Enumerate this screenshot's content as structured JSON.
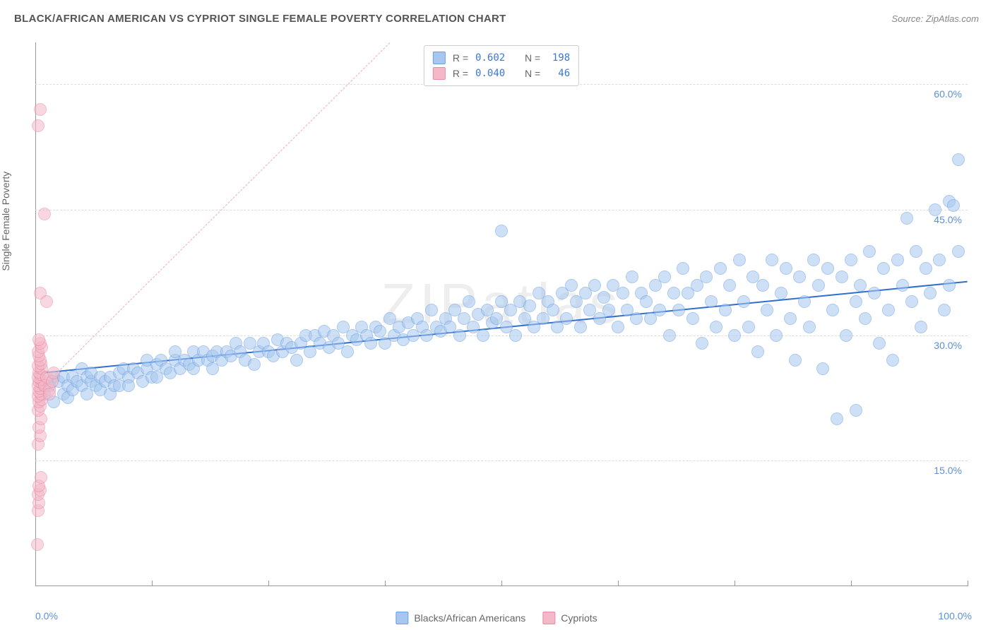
{
  "header": {
    "title": "BLACK/AFRICAN AMERICAN VS CYPRIOT SINGLE FEMALE POVERTY CORRELATION CHART",
    "source_prefix": "Source: ",
    "source": "ZipAtlas.com"
  },
  "chart": {
    "type": "scatter",
    "watermark": "ZIPatlas",
    "ylabel": "Single Female Poverty",
    "xlim": [
      0,
      100
    ],
    "ylim": [
      0,
      65
    ],
    "yticks": [
      {
        "v": 15,
        "label": "15.0%"
      },
      {
        "v": 30,
        "label": "30.0%"
      },
      {
        "v": 45,
        "label": "45.0%"
      },
      {
        "v": 60,
        "label": "60.0%"
      }
    ],
    "xtick_positions": [
      0,
      12.5,
      25,
      37.5,
      50,
      62.5,
      75,
      87.5,
      100
    ],
    "xlabel_min": "0.0%",
    "xlabel_max": "100.0%",
    "background_color": "#ffffff",
    "grid_color": "#dddddd",
    "marker_radius": 9,
    "marker_stroke_width": 1.2,
    "series": [
      {
        "name": "Blacks/African Americans",
        "fill": "#a7c7f0",
        "stroke": "#6b9fe0",
        "fill_opacity": 0.55,
        "R": "0.602",
        "N": "198",
        "trend": {
          "x1": 0,
          "y1": 25.5,
          "x2": 100,
          "y2": 36.5,
          "color": "#2f6fd0",
          "width": 2.5,
          "dash": "solid"
        },
        "points": [
          [
            1,
            23
          ],
          [
            1.5,
            24
          ],
          [
            2,
            22
          ],
          [
            2,
            25
          ],
          [
            2.5,
            24.5
          ],
          [
            3,
            23
          ],
          [
            3,
            25
          ],
          [
            3.5,
            24
          ],
          [
            3.5,
            22.5
          ],
          [
            4,
            25
          ],
          [
            4,
            23.5
          ],
          [
            4.5,
            24.5
          ],
          [
            5,
            24
          ],
          [
            5,
            26
          ],
          [
            5.5,
            25
          ],
          [
            5.5,
            23
          ],
          [
            6,
            24.5
          ],
          [
            6,
            25.5
          ],
          [
            6.5,
            24
          ],
          [
            7,
            25
          ],
          [
            7,
            23.5
          ],
          [
            7.5,
            24.5
          ],
          [
            8,
            25
          ],
          [
            8,
            23
          ],
          [
            8.5,
            24
          ],
          [
            9,
            25.5
          ],
          [
            9,
            24
          ],
          [
            9.5,
            26
          ],
          [
            10,
            25
          ],
          [
            10,
            24
          ],
          [
            10.5,
            26
          ],
          [
            11,
            25.5
          ],
          [
            11.5,
            24.5
          ],
          [
            12,
            26
          ],
          [
            12,
            27
          ],
          [
            12.5,
            25
          ],
          [
            13,
            26.5
          ],
          [
            13,
            25
          ],
          [
            13.5,
            27
          ],
          [
            14,
            26
          ],
          [
            14.5,
            25.5
          ],
          [
            15,
            27
          ],
          [
            15,
            28
          ],
          [
            15.5,
            26
          ],
          [
            16,
            27
          ],
          [
            16.5,
            26.5
          ],
          [
            17,
            28
          ],
          [
            17,
            26
          ],
          [
            17.5,
            27
          ],
          [
            18,
            28
          ],
          [
            18.5,
            27
          ],
          [
            19,
            27.5
          ],
          [
            19,
            26
          ],
          [
            19.5,
            28
          ],
          [
            20,
            27
          ],
          [
            20.5,
            28
          ],
          [
            21,
            27.5
          ],
          [
            21.5,
            29
          ],
          [
            22,
            28
          ],
          [
            22.5,
            27
          ],
          [
            23,
            29
          ],
          [
            23.5,
            26.5
          ],
          [
            24,
            28
          ],
          [
            24.5,
            29
          ],
          [
            25,
            28
          ],
          [
            25.5,
            27.5
          ],
          [
            26,
            29.5
          ],
          [
            26.5,
            28
          ],
          [
            27,
            29
          ],
          [
            27.5,
            28.5
          ],
          [
            28,
            27
          ],
          [
            28.5,
            29
          ],
          [
            29,
            30
          ],
          [
            29.5,
            28
          ],
          [
            30,
            30
          ],
          [
            30.5,
            29
          ],
          [
            31,
            30.5
          ],
          [
            31.5,
            28.5
          ],
          [
            32,
            30
          ],
          [
            32.5,
            29
          ],
          [
            33,
            31
          ],
          [
            33.5,
            28
          ],
          [
            34,
            30
          ],
          [
            34.5,
            29.5
          ],
          [
            35,
            31
          ],
          [
            35.5,
            30
          ],
          [
            36,
            29
          ],
          [
            36.5,
            31
          ],
          [
            37,
            30.5
          ],
          [
            37.5,
            29
          ],
          [
            38,
            32
          ],
          [
            38.5,
            30
          ],
          [
            39,
            31
          ],
          [
            39.5,
            29.5
          ],
          [
            40,
            31.5
          ],
          [
            40.5,
            30
          ],
          [
            41,
            32
          ],
          [
            41.5,
            31
          ],
          [
            42,
            30
          ],
          [
            42.5,
            33
          ],
          [
            43,
            31
          ],
          [
            43.5,
            30.5
          ],
          [
            44,
            32
          ],
          [
            44.5,
            31
          ],
          [
            45,
            33
          ],
          [
            45.5,
            30
          ],
          [
            46,
            32
          ],
          [
            46.5,
            34
          ],
          [
            47,
            31
          ],
          [
            47.5,
            32.5
          ],
          [
            48,
            30
          ],
          [
            48.5,
            33
          ],
          [
            49,
            31.5
          ],
          [
            49.5,
            32
          ],
          [
            50,
            34
          ],
          [
            50.5,
            31
          ],
          [
            50,
            42.5
          ],
          [
            51,
            33
          ],
          [
            51.5,
            30
          ],
          [
            52,
            34
          ],
          [
            52.5,
            32
          ],
          [
            53,
            33.5
          ],
          [
            53.5,
            31
          ],
          [
            54,
            35
          ],
          [
            54.5,
            32
          ],
          [
            55,
            34
          ],
          [
            55.5,
            33
          ],
          [
            56,
            31
          ],
          [
            56.5,
            35
          ],
          [
            57,
            32
          ],
          [
            57.5,
            36
          ],
          [
            58,
            34
          ],
          [
            58.5,
            31
          ],
          [
            59,
            35
          ],
          [
            59.5,
            33
          ],
          [
            60,
            36
          ],
          [
            60.5,
            32
          ],
          [
            61,
            34.5
          ],
          [
            61.5,
            33
          ],
          [
            62,
            36
          ],
          [
            62.5,
            31
          ],
          [
            63,
            35
          ],
          [
            63.5,
            33
          ],
          [
            64,
            37
          ],
          [
            64.5,
            32
          ],
          [
            65,
            35
          ],
          [
            65.5,
            34
          ],
          [
            66,
            32
          ],
          [
            66.5,
            36
          ],
          [
            67,
            33
          ],
          [
            67.5,
            37
          ],
          [
            68,
            30
          ],
          [
            68.5,
            35
          ],
          [
            69,
            33
          ],
          [
            69.5,
            38
          ],
          [
            70,
            35
          ],
          [
            70.5,
            32
          ],
          [
            71,
            36
          ],
          [
            71.5,
            29
          ],
          [
            72,
            37
          ],
          [
            72.5,
            34
          ],
          [
            73,
            31
          ],
          [
            73.5,
            38
          ],
          [
            74,
            33
          ],
          [
            74.5,
            36
          ],
          [
            75,
            30
          ],
          [
            75.5,
            39
          ],
          [
            76,
            34
          ],
          [
            76.5,
            31
          ],
          [
            77,
            37
          ],
          [
            77.5,
            28
          ],
          [
            78,
            36
          ],
          [
            78.5,
            33
          ],
          [
            79,
            39
          ],
          [
            79.5,
            30
          ],
          [
            80,
            35
          ],
          [
            80.5,
            38
          ],
          [
            81,
            32
          ],
          [
            81.5,
            27
          ],
          [
            82,
            37
          ],
          [
            82.5,
            34
          ],
          [
            83,
            31
          ],
          [
            83.5,
            39
          ],
          [
            84,
            36
          ],
          [
            84.5,
            26
          ],
          [
            85,
            38
          ],
          [
            85.5,
            33
          ],
          [
            86,
            20
          ],
          [
            86.5,
            37
          ],
          [
            87,
            30
          ],
          [
            87.5,
            39
          ],
          [
            88,
            34
          ],
          [
            88,
            21
          ],
          [
            88.5,
            36
          ],
          [
            89,
            32
          ],
          [
            89.5,
            40
          ],
          [
            90,
            35
          ],
          [
            90.5,
            29
          ],
          [
            91,
            38
          ],
          [
            91.5,
            33
          ],
          [
            92,
            27
          ],
          [
            92.5,
            39
          ],
          [
            93,
            36
          ],
          [
            93.5,
            44
          ],
          [
            94,
            34
          ],
          [
            94.5,
            40
          ],
          [
            95,
            31
          ],
          [
            95.5,
            38
          ],
          [
            96,
            35
          ],
          [
            96.5,
            45
          ],
          [
            97,
            39
          ],
          [
            97.5,
            33
          ],
          [
            98,
            46
          ],
          [
            98,
            36
          ],
          [
            98.5,
            45.5
          ],
          [
            99,
            51
          ],
          [
            99,
            40
          ]
        ]
      },
      {
        "name": "Cypriots",
        "fill": "#f5b8c8",
        "stroke": "#e88aa5",
        "fill_opacity": 0.55,
        "R": "0.040",
        "N": "46",
        "trend": {
          "x1": 0,
          "y1": 23,
          "x2": 38,
          "y2": 65,
          "color": "#f0aabb",
          "width": 1.2,
          "dash": "5,4"
        },
        "points": [
          [
            0.2,
            5
          ],
          [
            0.3,
            9
          ],
          [
            0.4,
            10
          ],
          [
            0.3,
            11
          ],
          [
            0.5,
            11.5
          ],
          [
            0.4,
            12
          ],
          [
            0.6,
            13
          ],
          [
            0.3,
            17
          ],
          [
            0.5,
            18
          ],
          [
            0.4,
            19
          ],
          [
            0.6,
            20
          ],
          [
            0.3,
            21
          ],
          [
            0.5,
            21.5
          ],
          [
            0.4,
            22
          ],
          [
            0.7,
            22.3
          ],
          [
            0.3,
            22.7
          ],
          [
            0.6,
            23
          ],
          [
            0.4,
            23.3
          ],
          [
            0.5,
            23.6
          ],
          [
            0.3,
            24
          ],
          [
            0.7,
            24.3
          ],
          [
            0.4,
            24.5
          ],
          [
            0.6,
            24.7
          ],
          [
            0.3,
            25
          ],
          [
            0.5,
            25.3
          ],
          [
            0.4,
            25.6
          ],
          [
            0.7,
            26
          ],
          [
            0.3,
            26.3
          ],
          [
            0.6,
            26.6
          ],
          [
            0.5,
            27
          ],
          [
            0.4,
            27.5
          ],
          [
            0.3,
            28
          ],
          [
            0.7,
            28.5
          ],
          [
            0.5,
            29
          ],
          [
            0.4,
            29.5
          ],
          [
            1,
            24
          ],
          [
            1.2,
            25
          ],
          [
            1.5,
            23.5
          ],
          [
            1.8,
            24.5
          ],
          [
            2,
            25.5
          ],
          [
            0.5,
            35
          ],
          [
            1,
            44.5
          ],
          [
            0.3,
            55
          ],
          [
            0.5,
            57
          ],
          [
            1.2,
            34
          ],
          [
            1.5,
            23
          ]
        ]
      }
    ],
    "legend_bottom": [
      {
        "label": "Blacks/African Americans",
        "fill": "#a7c7f0",
        "stroke": "#6b9fe0"
      },
      {
        "label": "Cypriots",
        "fill": "#f5b8c8",
        "stroke": "#e88aa5"
      }
    ],
    "legend_top": {
      "r_label": "R =",
      "n_label": "N ="
    }
  }
}
